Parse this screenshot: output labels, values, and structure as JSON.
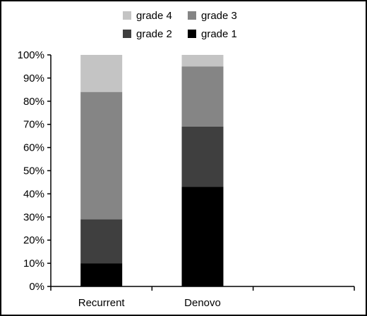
{
  "chart_data": {
    "type": "bar",
    "stacked": true,
    "percent": true,
    "categories": [
      "Recurrent",
      "Denovo"
    ],
    "series": [
      {
        "name": "grade 1",
        "color": "#000000",
        "values": [
          10,
          43
        ]
      },
      {
        "name": "grade 2",
        "color": "#3f3f3f",
        "values": [
          19,
          26
        ]
      },
      {
        "name": "grade 3",
        "color": "#858585",
        "values": [
          55,
          26
        ]
      },
      {
        "name": "grade 4",
        "color": "#c4c4c4",
        "values": [
          16,
          5
        ]
      }
    ],
    "legend_order": [
      "grade 4",
      "grade 3",
      "grade 2",
      "grade 1"
    ],
    "ylim": [
      0,
      100
    ],
    "yticks": [
      "0%",
      "10%",
      "20%",
      "30%",
      "40%",
      "50%",
      "60%",
      "70%",
      "80%",
      "90%",
      "100%"
    ],
    "legend_position": "top",
    "grid": false
  }
}
